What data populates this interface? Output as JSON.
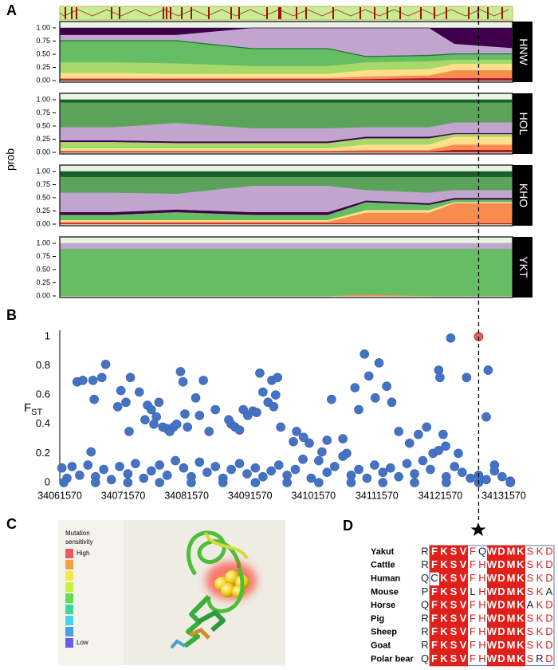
{
  "panel_labels": [
    "A",
    "B",
    "C",
    "D"
  ],
  "chart_data": [
    {
      "type": "stacked_area",
      "title": "HNW",
      "ylabel": "prob",
      "x": [
        34061570,
        34070000,
        34080000,
        34092000,
        34104000,
        34110000,
        34120000,
        34124000,
        34133200
      ],
      "xlim": [
        34061570,
        34133200
      ],
      "ylim": [
        0,
        1
      ],
      "yticks": [
        {
          "value": 0,
          "label": "0.00"
        },
        {
          "value": 0.25,
          "label": "0.25"
        },
        {
          "value": 0.5,
          "label": "0.50"
        },
        {
          "value": 0.75,
          "label": "0.75"
        },
        {
          "value": 1,
          "label": "1.00"
        }
      ],
      "series": [
        {
          "color": "#b2182b",
          "values": [
            0.03,
            0.03,
            0.03,
            0.03,
            0.03,
            0.03,
            0.05,
            0.05,
            0.05
          ]
        },
        {
          "color": "#f88d52",
          "values": [
            0.02,
            0.02,
            0.02,
            0.02,
            0.02,
            0.05,
            0.05,
            0.15,
            0.15
          ]
        },
        {
          "color": "#fee08b",
          "values": [
            0.1,
            0.1,
            0.08,
            0.08,
            0.08,
            0.12,
            0.12,
            0.12,
            0.12
          ]
        },
        {
          "color": "#a6d96a",
          "values": [
            0.2,
            0.2,
            0.2,
            0.15,
            0.15,
            0.15,
            0.15,
            0.08,
            0.08
          ]
        },
        {
          "color": "#66bd63",
          "values": [
            0.4,
            0.4,
            0.42,
            0.32,
            0.32,
            0.1,
            0.1,
            0.1,
            0.1
          ]
        },
        {
          "color": "#1a7837",
          "values": [
            0.02,
            0.02,
            0.02,
            0.02,
            0.02,
            0.02,
            0.02,
            0.02,
            0.02
          ]
        },
        {
          "color": "#c2a5cf",
          "values": [
            0.1,
            0.1,
            0.1,
            0.38,
            0.38,
            0.53,
            0.51,
            0.18,
            0.1
          ]
        },
        {
          "color": "#3f0049",
          "values": [
            0.13,
            0.13,
            0.13,
            0,
            0,
            0,
            0,
            0.3,
            0.38
          ]
        }
      ]
    },
    {
      "type": "stacked_area",
      "title": "HOL",
      "x": [
        34061570,
        34070000,
        34080000,
        34092000,
        34104000,
        34110000,
        34120000,
        34124000,
        34133200
      ],
      "xlim": [
        34061570,
        34133200
      ],
      "ylim": [
        0,
        1
      ],
      "yticks": [
        {
          "value": 0,
          "label": "0.00"
        },
        {
          "value": 0.25,
          "label": "0.25"
        },
        {
          "value": 0.5,
          "label": "0.50"
        },
        {
          "value": 0.75,
          "label": "0.75"
        },
        {
          "value": 1,
          "label": "1.00"
        }
      ],
      "series": [
        {
          "color": "#b2182b",
          "values": [
            0.02,
            0.02,
            0.02,
            0.02,
            0.02,
            0.02,
            0.02,
            0.05,
            0.05
          ]
        },
        {
          "color": "#f88d52",
          "values": [
            0.01,
            0.01,
            0.01,
            0.01,
            0.01,
            0.03,
            0.03,
            0.1,
            0.1
          ]
        },
        {
          "color": "#fee08b",
          "values": [
            0.05,
            0.05,
            0.05,
            0.05,
            0.05,
            0.1,
            0.1,
            0.15,
            0.15
          ]
        },
        {
          "color": "#a6d96a",
          "values": [
            0.12,
            0.12,
            0.1,
            0.1,
            0.1,
            0.12,
            0.12,
            0.05,
            0.05
          ]
        },
        {
          "color": "#3f0049",
          "values": [
            0.03,
            0.03,
            0.03,
            0.03,
            0.03,
            0.03,
            0.03,
            0.02,
            0.02
          ]
        },
        {
          "color": "#c2a5cf",
          "values": [
            0.25,
            0.25,
            0.35,
            0.25,
            0.25,
            0.18,
            0.18,
            0.2,
            0.2
          ]
        },
        {
          "color": "#5ba35b",
          "values": [
            0.47,
            0.47,
            0.39,
            0.49,
            0.49,
            0.47,
            0.47,
            0.38,
            0.38
          ]
        },
        {
          "color": "#1a5e2a",
          "values": [
            0.05,
            0.05,
            0.05,
            0.05,
            0.05,
            0.05,
            0.05,
            0.05,
            0.05
          ]
        }
      ]
    },
    {
      "type": "stacked_area",
      "title": "KHO",
      "x": [
        34061570,
        34070000,
        34080000,
        34092000,
        34104000,
        34110000,
        34120000,
        34124000,
        34133200
      ],
      "xlim": [
        34061570,
        34133200
      ],
      "ylim": [
        0,
        1
      ],
      "yticks": [
        {
          "value": 0,
          "label": "0.00"
        },
        {
          "value": 0.25,
          "label": "0.25"
        },
        {
          "value": 0.5,
          "label": "0.50"
        },
        {
          "value": 0.75,
          "label": "0.75"
        },
        {
          "value": 1,
          "label": "1.00"
        }
      ],
      "series": [
        {
          "color": "#b2182b",
          "values": [
            0.02,
            0.02,
            0.02,
            0.02,
            0.02,
            0.02,
            0.02,
            0.02,
            0.02
          ]
        },
        {
          "color": "#f88d52",
          "values": [
            0.03,
            0.03,
            0.03,
            0.03,
            0.03,
            0.2,
            0.2,
            0.38,
            0.38
          ]
        },
        {
          "color": "#fee08b",
          "values": [
            0.03,
            0.03,
            0.03,
            0.03,
            0.03,
            0.05,
            0.05,
            0.02,
            0.02
          ]
        },
        {
          "color": "#66bd63",
          "values": [
            0.1,
            0.1,
            0.15,
            0.1,
            0.1,
            0.15,
            0.1,
            0.05,
            0.05
          ]
        },
        {
          "color": "#3f0049",
          "values": [
            0.05,
            0.05,
            0.05,
            0.05,
            0.05,
            0.03,
            0.03,
            0.03,
            0.03
          ]
        },
        {
          "color": "#c2a5cf",
          "values": [
            0.37,
            0.37,
            0.3,
            0.5,
            0.5,
            0.2,
            0.2,
            0.15,
            0.15
          ]
        },
        {
          "color": "#5ba35b",
          "values": [
            0.3,
            0.3,
            0.32,
            0.17,
            0.17,
            0.25,
            0.3,
            0.25,
            0.25
          ]
        },
        {
          "color": "#1a5e2a",
          "values": [
            0.1,
            0.1,
            0.1,
            0.1,
            0.1,
            0.1,
            0.1,
            0.1,
            0.1
          ]
        }
      ]
    },
    {
      "type": "stacked_area",
      "title": "YKT",
      "x": [
        34061570,
        34070000,
        34080000,
        34092000,
        34104000,
        34110000,
        34120000,
        34124000,
        34133200
      ],
      "xlim": [
        34061570,
        34133200
      ],
      "ylim": [
        0,
        1
      ],
      "yticks": [
        {
          "value": 0,
          "label": "0.00"
        },
        {
          "value": 0.25,
          "label": "0.25"
        },
        {
          "value": 0.5,
          "label": "0.50"
        },
        {
          "value": 0.75,
          "label": "0.75"
        },
        {
          "value": 1,
          "label": "1.00"
        }
      ],
      "series": [
        {
          "color": "#f88d52",
          "values": [
            0,
            0,
            0,
            0,
            0,
            0.03,
            0,
            0,
            0
          ]
        },
        {
          "color": "#66bd63",
          "values": [
            0.9,
            0.9,
            0.9,
            0.9,
            0.9,
            0.87,
            0.9,
            0.9,
            0.9
          ]
        },
        {
          "color": "#c2a5cf",
          "values": [
            0.1,
            0.1,
            0.1,
            0.1,
            0.1,
            0.1,
            0.1,
            0.1,
            0.1
          ]
        }
      ]
    },
    {
      "type": "scatter",
      "ylabel": "F",
      "ylabel_subscript": "ST",
      "xlim": [
        34061570,
        34133200
      ],
      "ylim": [
        0,
        1
      ],
      "xticks": [
        34061570,
        34071570,
        34081570,
        34091570,
        34101570,
        34111570,
        34121570,
        34131570
      ],
      "yticks": [
        0,
        0.2,
        0.4,
        0.6,
        0.8,
        1
      ],
      "series": [
        {
          "color": "#4472c4",
          "x": [
            34064300,
            34065200,
            34066800,
            34067000,
            34066500,
            34068200,
            34068800,
            34070700,
            34071200,
            34072000,
            34072500,
            34072700,
            34074100,
            34075000,
            34075400,
            34076000,
            34076400,
            34076800,
            34077200,
            34077800,
            34078400,
            34078900,
            34079500,
            34080000,
            34080600,
            34081000,
            34081300,
            34081700,
            34083000,
            34083600,
            34084200,
            34085100,
            34086100,
            34088200,
            34088600,
            34089200,
            34089900,
            34090500,
            34091200,
            34092000,
            34092600,
            34093100,
            34093600,
            34094400,
            34095000,
            34095300,
            34095600,
            34095900,
            34096400,
            34098400,
            34098900,
            34100000,
            34100900,
            34102900,
            34103700,
            34104400,
            34106200,
            34106800,
            34108100,
            34108700,
            34109600,
            34110300,
            34111300,
            34111900,
            34113100,
            34113900,
            34115000,
            34116700,
            34118100,
            34119400,
            34120400,
            34121300,
            34121500,
            34122000,
            34122400,
            34123200,
            34124400,
            34125700,
            34129100,
            34128800,
            34130100
          ],
          "values": [
            0.69,
            0.7,
            0.7,
            0.57,
            0.21,
            0.72,
            0.81,
            0.52,
            0.63,
            0.55,
            0.35,
            0.72,
            0.62,
            0.43,
            0.53,
            0.5,
            0.4,
            0.45,
            0.55,
            0.38,
            0.37,
            0.35,
            0.38,
            0.4,
            0.76,
            0.69,
            0.47,
            0.38,
            0.58,
            0.46,
            0.7,
            0.35,
            0.5,
            0.43,
            0.4,
            0.38,
            0.36,
            0.5,
            0.46,
            0.49,
            0.48,
            0.75,
            0.62,
            0.55,
            0.7,
            0.52,
            0.6,
            0.72,
            0.38,
            0.28,
            0.35,
            0.31,
            0.27,
            0.21,
            0.29,
            0.57,
            0.3,
            0.2,
            0.65,
            0.5,
            0.88,
            0.73,
            0.58,
            0.82,
            0.66,
            0.55,
            0.35,
            0.27,
            0.33,
            0.38,
            0.2,
            0.77,
            0.72,
            0.33,
            0.25,
            0.99,
            0.2,
            0.72,
            0.77,
            0.45,
            0.12
          ]
        },
        {
          "color": "#4472c4",
          "x": [
            34061900,
            34062700,
            34063500,
            34064700,
            34066000,
            34067200,
            34068500,
            34069700,
            34071000,
            34072300,
            34073500,
            34074800,
            34076000,
            34077300,
            34078500,
            34079800,
            34081100,
            34082300,
            34083600,
            34084800,
            34086100,
            34087300,
            34088600,
            34089900,
            34091100,
            34092400,
            34093600,
            34094900,
            34096100,
            34097400,
            34098700,
            34099900,
            34101200,
            34102400,
            34103700,
            34104900,
            34106200,
            34107500,
            34108700,
            34110000,
            34111200,
            34112500,
            34113700,
            34115000,
            34116300,
            34117500,
            34118800,
            34120000,
            34121300,
            34122500,
            34123800,
            34125000,
            34126300,
            34127600,
            34128800,
            34130100,
            34131300,
            34132600
          ],
          "values": [
            0.1,
            0.03,
            0.11,
            0.05,
            0.12,
            0.04,
            0.09,
            0.02,
            0.11,
            0.06,
            0.13,
            0.03,
            0.08,
            0.12,
            0.05,
            0.15,
            0.1,
            0.04,
            0.14,
            0.07,
            0.11,
            0.03,
            0.09,
            0.13,
            0.06,
            0.1,
            0.04,
            0.08,
            0.12,
            0.05,
            0.09,
            0.16,
            0.03,
            0.15,
            0.07,
            0.11,
            0.18,
            0.05,
            0.09,
            0.03,
            0.12,
            0.07,
            0.1,
            0.04,
            0.13,
            0.06,
            0.15,
            0.09,
            0.22,
            0.04,
            0.11,
            0.07,
            0.03,
            0.05,
            0.02,
            0.08,
            0.04,
            0.01
          ]
        },
        {
          "color": "#4472c4",
          "x": [
            34062200,
            34067200,
            34072300,
            34077300,
            34082300,
            34087300,
            34092400,
            34097400,
            34102400,
            34107500,
            34112500,
            34117500,
            34122500,
            34127600,
            34132600
          ],
          "values": [
            0,
            0,
            0,
            0,
            0,
            0,
            0,
            0,
            0,
            0,
            0,
            0,
            0,
            0,
            0
          ]
        },
        {
          "color": "#e8615f",
          "x": [
            34127600
          ],
          "values": [
            1
          ]
        }
      ]
    }
  ],
  "protein": {
    "legend_title": [
      "Mutation",
      "sensitivity"
    ],
    "high_label": "High",
    "low_label": "Low"
  },
  "alignment": {
    "rows": [
      {
        "name": "Yakut",
        "residues": [
          "R",
          "F",
          "K",
          "S",
          "V",
          "F",
          "Q",
          "W",
          "D",
          "M",
          "K",
          "S",
          "K",
          "D"
        ]
      },
      {
        "name": "Cattle",
        "residues": [
          "R",
          "F",
          "K",
          "S",
          "V",
          "F",
          "H",
          "W",
          "D",
          "M",
          "K",
          "S",
          "K",
          "D"
        ]
      },
      {
        "name": "Human",
        "residues": [
          "Q",
          "C",
          "K",
          "S",
          "V",
          "F",
          "H",
          "W",
          "D",
          "M",
          "K",
          "S",
          "K",
          "D"
        ]
      },
      {
        "name": "Mouse",
        "residues": [
          "P",
          "F",
          "K",
          "S",
          "V",
          "L",
          "H",
          "W",
          "D",
          "M",
          "K",
          "S",
          "K",
          "A"
        ]
      },
      {
        "name": "Horse",
        "residues": [
          "Q",
          "F",
          "K",
          "S",
          "V",
          "F",
          "H",
          "W",
          "D",
          "M",
          "K",
          "A",
          "K",
          "D"
        ]
      },
      {
        "name": "Pig",
        "residues": [
          "R",
          "F",
          "K",
          "S",
          "V",
          "F",
          "H",
          "W",
          "D",
          "M",
          "K",
          "S",
          "K",
          "D"
        ]
      },
      {
        "name": "Sheep",
        "residues": [
          "R",
          "F",
          "K",
          "S",
          "V",
          "F",
          "H",
          "W",
          "D",
          "M",
          "K",
          "S",
          "K",
          "D"
        ]
      },
      {
        "name": "Goat",
        "residues": [
          "R",
          "F",
          "K",
          "S",
          "V",
          "F",
          "H",
          "W",
          "D",
          "M",
          "K",
          "S",
          "K",
          "D"
        ]
      },
      {
        "name": "Polar bear",
        "residues": [
          "Q",
          "F",
          "K",
          "S",
          "V",
          "F",
          "H",
          "W",
          "D",
          "M",
          "K",
          "S",
          "R",
          "D"
        ]
      }
    ]
  }
}
